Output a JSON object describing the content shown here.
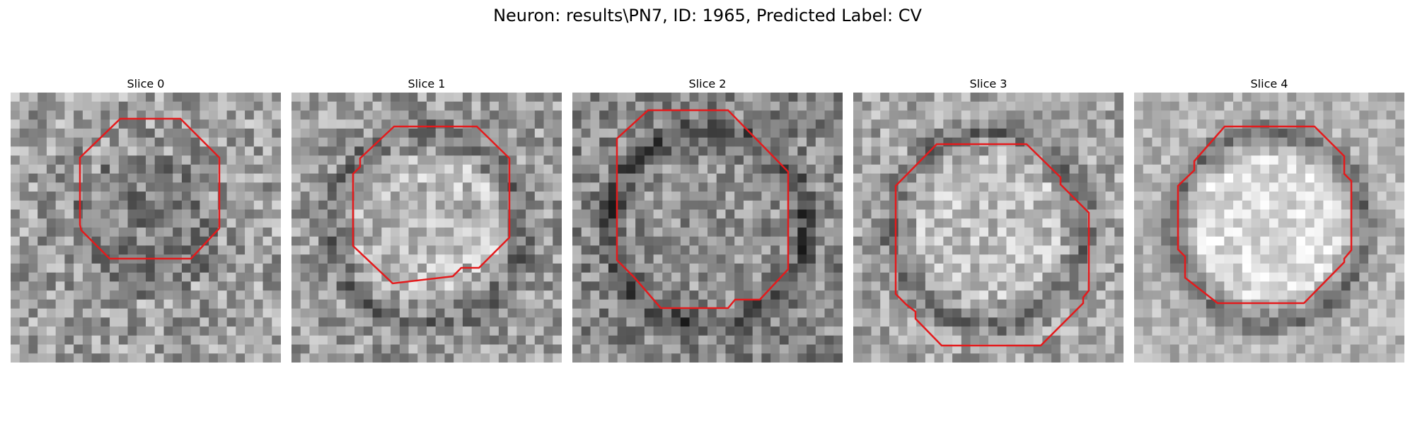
{
  "figure": {
    "title": "Neuron: results\\PN7, ID: 1965, Predicted Label: CV"
  },
  "slices": [
    {
      "label": "Slice 0",
      "mean_gray": 160,
      "contrast": 62,
      "seed": 11,
      "center_shade": -30,
      "dark_ring": 10,
      "bright_center": false
    },
    {
      "label": "Slice 1",
      "mean_gray": 155,
      "contrast": 60,
      "seed": 23,
      "center_shade": 30,
      "dark_ring": 45,
      "bright_center": true
    },
    {
      "label": "Slice 2",
      "mean_gray": 135,
      "contrast": 60,
      "seed": 37,
      "center_shade": 10,
      "dark_ring": 60,
      "bright_center": false
    },
    {
      "label": "Slice 3",
      "mean_gray": 165,
      "contrast": 55,
      "seed": 41,
      "center_shade": 25,
      "dark_ring": 55,
      "bright_center": true
    },
    {
      "label": "Slice 4",
      "mean_gray": 180,
      "contrast": 40,
      "seed": 53,
      "center_shade": 40,
      "dark_ring": 70,
      "bright_center": true
    }
  ],
  "contour_color": "#e41a1c"
}
